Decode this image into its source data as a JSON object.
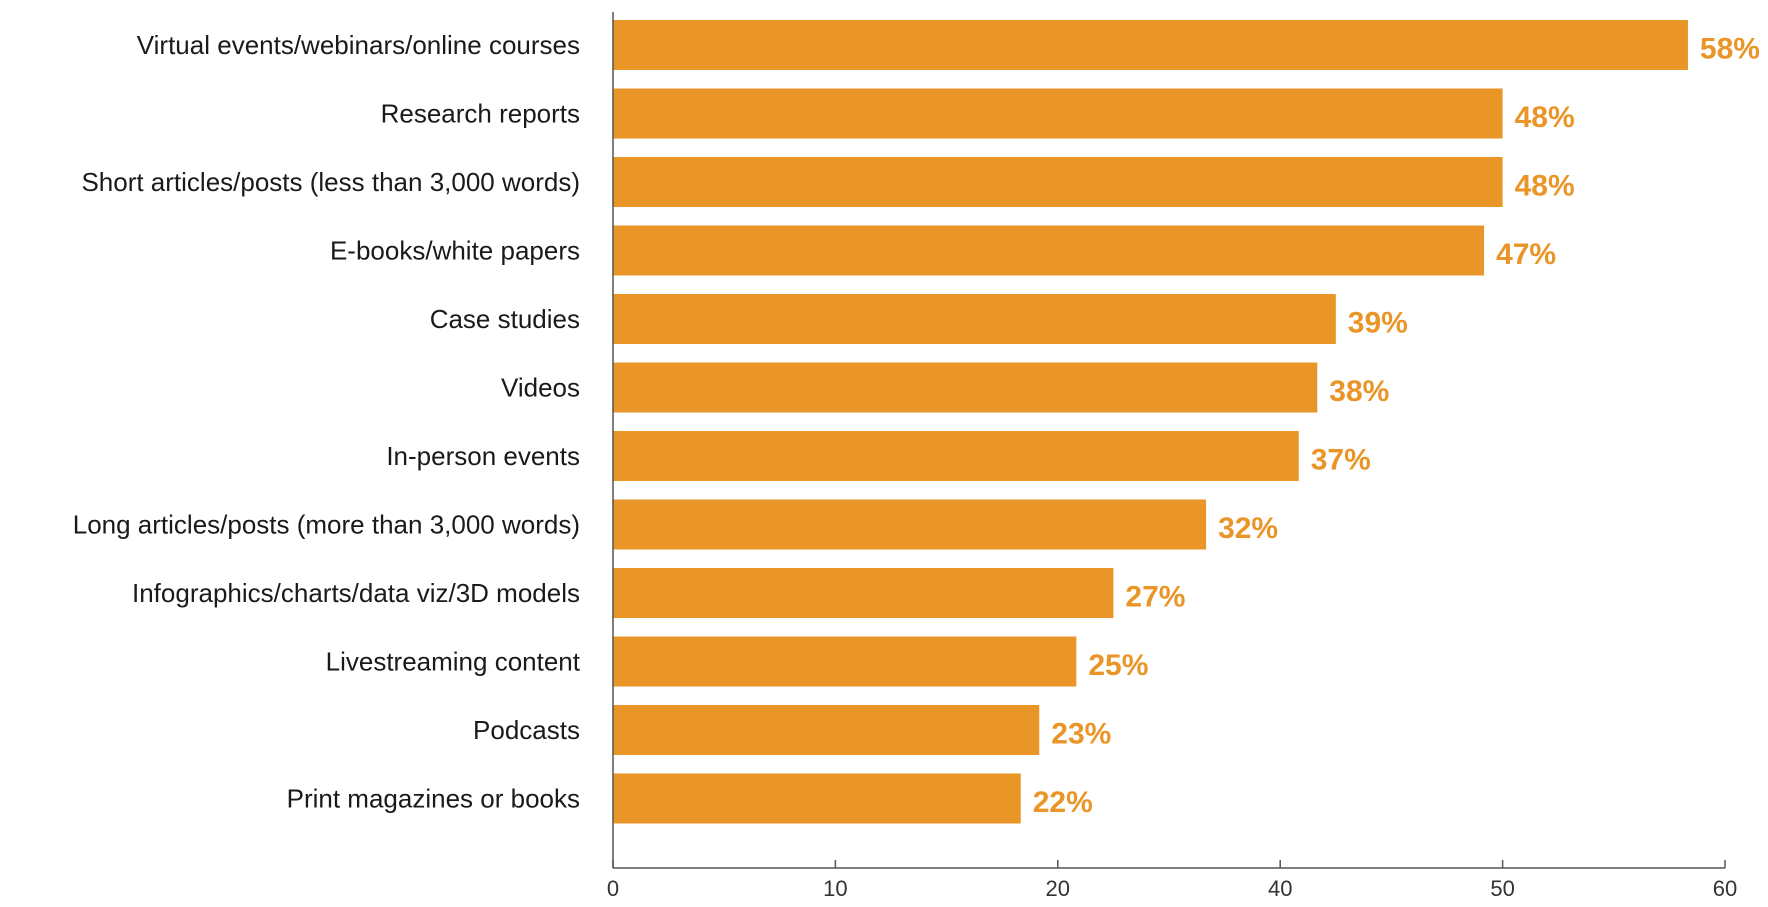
{
  "chart_data": {
    "type": "bar",
    "orientation": "horizontal",
    "categories": [
      "Virtual events/webinars/online courses",
      "Research reports",
      "Short articles/posts (less than 3,000 words)",
      "E-books/white papers",
      "Case studies",
      "Videos",
      "In-person events",
      "Long articles/posts (more than 3,000 words)",
      "Infographics/charts/data viz/3D models",
      "Livestreaming content",
      "Podcasts",
      "Print magazines or books"
    ],
    "values": [
      58,
      48,
      48,
      47,
      39,
      38,
      37,
      32,
      27,
      25,
      23,
      22
    ],
    "value_labels": [
      "58%",
      "48%",
      "48%",
      "47%",
      "39%",
      "38%",
      "37%",
      "32%",
      "27%",
      "25%",
      "23%",
      "22%"
    ],
    "xlim": [
      0,
      60
    ],
    "x_ticks": [
      "0",
      "10",
      "20",
      "40",
      "50",
      "60"
    ],
    "grid": false,
    "colors": {
      "bar": "#E99527",
      "value_label": "#E99527",
      "axis": "#555555"
    }
  }
}
